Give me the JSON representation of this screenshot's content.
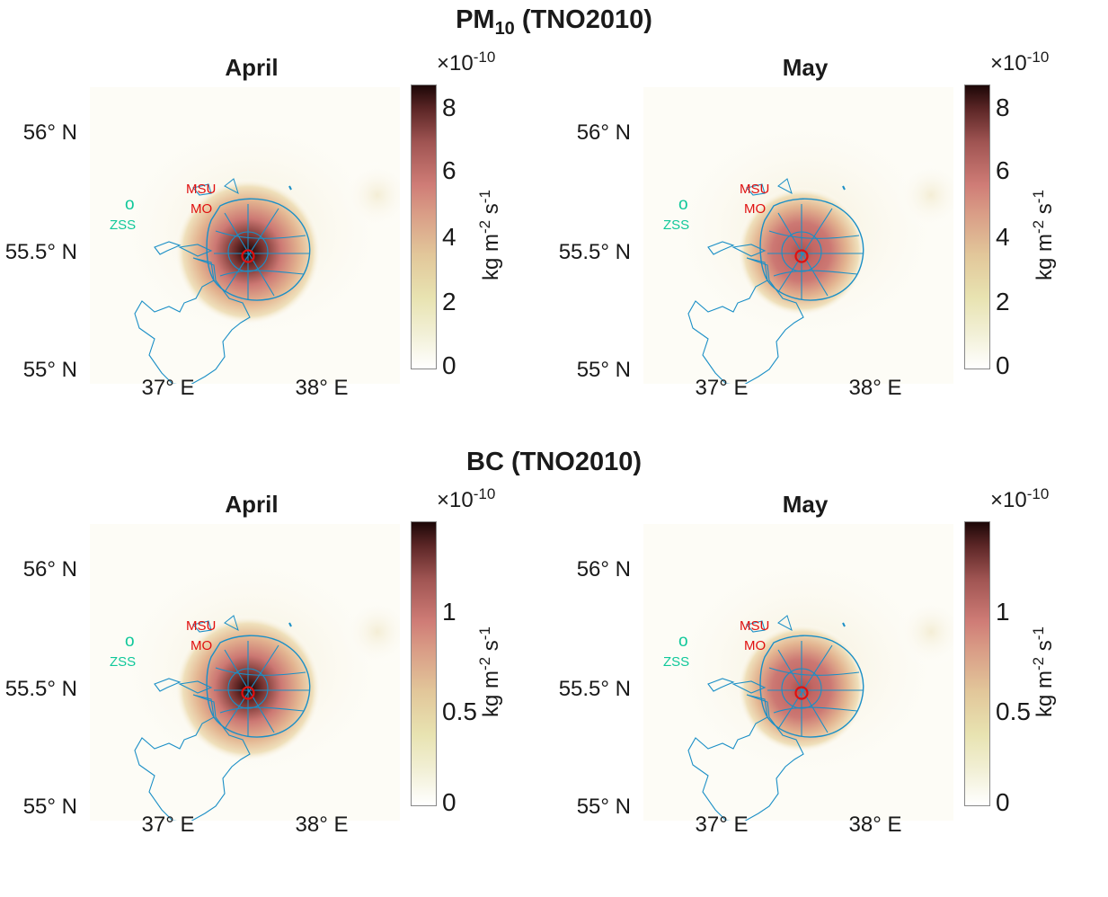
{
  "figure": {
    "row_titles": [
      {
        "main": "PM",
        "sub": "10",
        "rest": " (TNO2010)"
      },
      {
        "main": "BC (TNO2010)"
      }
    ],
    "panels": [
      {
        "title": "April",
        "lat_ticks": [
          "56° N",
          "55.5° N",
          "55° N"
        ],
        "lon_ticks": [
          "37° E",
          "38° E"
        ],
        "colorbar": {
          "exp_base": "×10",
          "exp_power": "-10",
          "ticks": [
            "8",
            "6",
            "4",
            "2",
            "0"
          ],
          "label_main": "kg m",
          "label_p1": "-2",
          "label_mid": " s",
          "label_p2": "-1"
        },
        "sites": {
          "msu": "MSU",
          "mo": "MO",
          "zss": "ZSS"
        }
      },
      {
        "title": "May",
        "lat_ticks": [
          "56° N",
          "55.5° N",
          "55° N"
        ],
        "lon_ticks": [
          "37° E",
          "38° E"
        ],
        "colorbar": {
          "exp_base": "×10",
          "exp_power": "-10",
          "ticks": [
            "8",
            "6",
            "4",
            "2",
            "0"
          ],
          "label_main": "kg m",
          "label_p1": "-2",
          "label_mid": " s",
          "label_p2": "-1"
        },
        "sites": {
          "msu": "MSU",
          "mo": "MO",
          "zss": "ZSS"
        }
      },
      {
        "title": "April",
        "lat_ticks": [
          "56° N",
          "55.5° N",
          "55° N"
        ],
        "lon_ticks": [
          "37° E",
          "38° E"
        ],
        "colorbar": {
          "exp_base": "×10",
          "exp_power": "-10",
          "ticks": [
            "1",
            "0.5",
            "0"
          ],
          "label_main": "kg m",
          "label_p1": "-2",
          "label_mid": " s",
          "label_p2": "-1"
        },
        "sites": {
          "msu": "MSU",
          "mo": "MO",
          "zss": "ZSS"
        }
      },
      {
        "title": "May",
        "lat_ticks": [
          "56° N",
          "55.5° N",
          "55° N"
        ],
        "lon_ticks": [
          "37° E",
          "38° E"
        ],
        "colorbar": {
          "exp_base": "×10",
          "exp_power": "-10",
          "ticks": [
            "1",
            "0.5",
            "0"
          ],
          "label_main": "kg m",
          "label_p1": "-2",
          "label_mid": " s",
          "label_p2": "-1"
        },
        "sites": {
          "msu": "MSU",
          "mo": "MO",
          "zss": "ZSS"
        }
      }
    ]
  }
}
